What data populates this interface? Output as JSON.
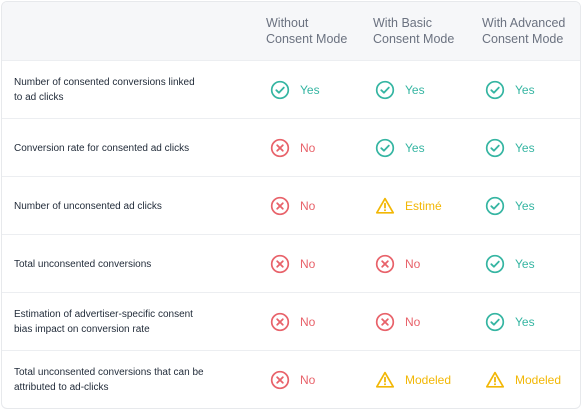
{
  "columns": [
    {
      "line1": "Without",
      "line2": "Consent Mode"
    },
    {
      "line1": "With Basic",
      "line2": "Consent Mode"
    },
    {
      "line1": "With Advanced",
      "line2": "Consent Mode"
    }
  ],
  "rows": [
    {
      "line1": "Number of consented conversions linked",
      "line2": "to ad clicks",
      "cells": [
        {
          "status": "yes",
          "text": "Yes"
        },
        {
          "status": "yes",
          "text": "Yes"
        },
        {
          "status": "yes",
          "text": "Yes"
        }
      ]
    },
    {
      "line1": "Conversion rate for consented ad clicks",
      "line2": "",
      "cells": [
        {
          "status": "no",
          "text": "No"
        },
        {
          "status": "yes",
          "text": "Yes"
        },
        {
          "status": "yes",
          "text": "Yes"
        }
      ]
    },
    {
      "line1": "Number of unconsented ad clicks",
      "line2": "",
      "cells": [
        {
          "status": "no",
          "text": "No"
        },
        {
          "status": "warning",
          "text": "Estimé"
        },
        {
          "status": "yes",
          "text": "Yes"
        }
      ]
    },
    {
      "line1": "Total unconsented conversions",
      "line2": "",
      "cells": [
        {
          "status": "no",
          "text": "No"
        },
        {
          "status": "no",
          "text": "No"
        },
        {
          "status": "yes",
          "text": "Yes"
        }
      ]
    },
    {
      "line1": "Estimation of advertiser-specific consent",
      "line2": "bias impact on conversion rate",
      "cells": [
        {
          "status": "no",
          "text": "No"
        },
        {
          "status": "no",
          "text": "No"
        },
        {
          "status": "yes",
          "text": "Yes"
        }
      ]
    },
    {
      "line1": "Total unconsented conversions that can be",
      "line2": "attributed to ad-clicks",
      "cells": [
        {
          "status": "no",
          "text": "No"
        },
        {
          "status": "warning",
          "text": "Modeled"
        },
        {
          "status": "warning",
          "text": "Modeled"
        }
      ]
    }
  ],
  "colors": {
    "yes": "#35b5a2",
    "no": "#e8626a",
    "warning": "#f2b705",
    "header_bg": "#f6f7f9"
  },
  "icons": {
    "yes": "check-circle-icon",
    "no": "x-circle-icon",
    "warning": "warning-triangle-icon"
  }
}
